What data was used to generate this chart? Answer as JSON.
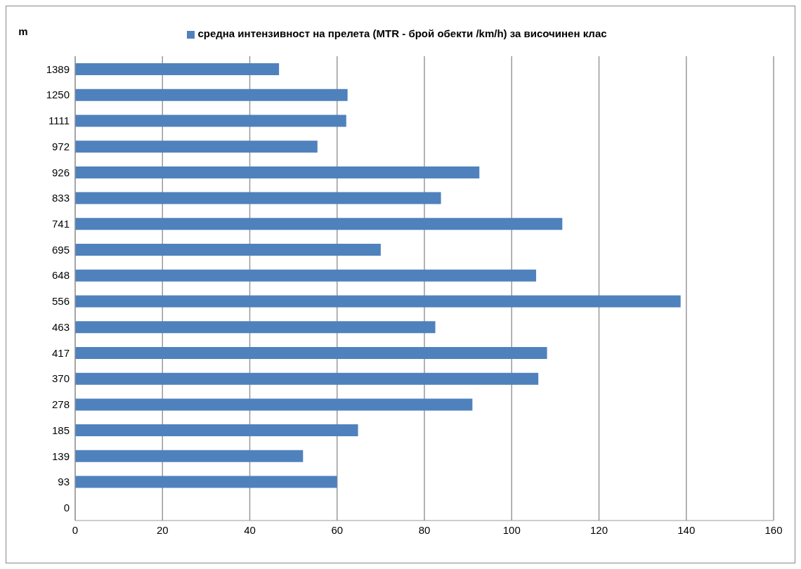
{
  "chart_data": {
    "type": "bar",
    "orientation": "horizontal",
    "ylabel": "m",
    "categories": [
      "1389",
      "1250",
      "1111",
      "972",
      "926",
      "833",
      "741",
      "695",
      "648",
      "556",
      "463",
      "417",
      "370",
      "278",
      "185",
      "139",
      "93",
      "0"
    ],
    "series": [
      {
        "name": "средна интензивност на прелета (MTR - брой обекти /km/h) за височинен клас",
        "color": "#4f81bd",
        "values": [
          46.7,
          62.4,
          62.1,
          55.5,
          92.6,
          83.8,
          111.6,
          70.0,
          105.6,
          138.7,
          82.5,
          108.1,
          106.1,
          91.0,
          64.8,
          52.2,
          60.0,
          0
        ]
      }
    ],
    "xlim": [
      0,
      160
    ],
    "xticks": [
      0,
      20,
      40,
      60,
      80,
      100,
      120,
      140,
      160
    ],
    "grid": "x",
    "legend": "top"
  }
}
